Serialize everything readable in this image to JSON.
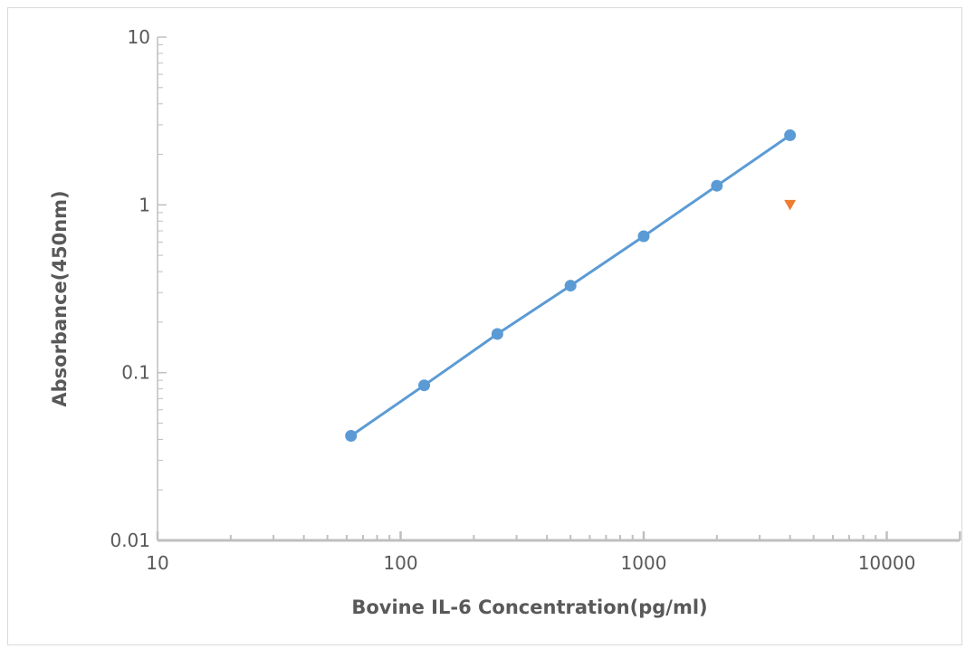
{
  "chart_data": {
    "type": "scatter",
    "title": "",
    "xlabel": "Bovine IL-6  Concentration(pg/ml)",
    "ylabel": "Absorbance(450nm)",
    "x_scale": "log",
    "y_scale": "log",
    "xlim": [
      10,
      20000
    ],
    "ylim": [
      0.01,
      10
    ],
    "x_ticks": [
      {
        "value": 10,
        "label": "10"
      },
      {
        "value": 100,
        "label": "100"
      },
      {
        "value": 1000,
        "label": "1000"
      },
      {
        "value": 10000,
        "label": "10000"
      }
    ],
    "y_ticks": [
      {
        "value": 0.01,
        "label": "0.01"
      },
      {
        "value": 0.1,
        "label": "0.1"
      },
      {
        "value": 1,
        "label": "1"
      },
      {
        "value": 10,
        "label": "10"
      }
    ],
    "grid": false,
    "legend": "none",
    "series": [
      {
        "marker": "circle",
        "line": true,
        "color": "#5b9bd5",
        "points": [
          {
            "x": 62.5,
            "y": 0.042
          },
          {
            "x": 125,
            "y": 0.084
          },
          {
            "x": 250,
            "y": 0.17
          },
          {
            "x": 500,
            "y": 0.33
          },
          {
            "x": 1000,
            "y": 0.65
          },
          {
            "x": 2000,
            "y": 1.3
          },
          {
            "x": 4000,
            "y": 2.6
          }
        ]
      },
      {
        "marker": "triangle-down",
        "line": false,
        "color": "#ed7d31",
        "points": [
          {
            "x": 4000,
            "y": 1.0
          }
        ]
      }
    ]
  }
}
